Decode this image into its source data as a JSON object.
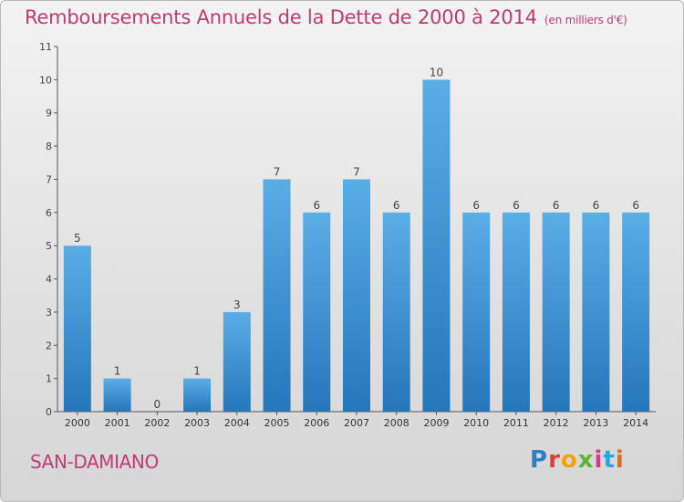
{
  "header": {
    "title": "Remboursements Annuels de la Dette de 2000 à 2014",
    "unit": "(en milliers d'€)"
  },
  "footer": {
    "place": "SAN-DAMIANO",
    "logo_letters": [
      "P",
      "r",
      "o",
      "x",
      "i",
      "t",
      "i"
    ]
  },
  "colors": {
    "title": "#c33a6e",
    "bar_light": "#5aaee6",
    "bar_dark": "#2576bb",
    "axis": "#555555"
  },
  "chart_data": {
    "type": "bar",
    "title": "Remboursements Annuels de la Dette de 2000 à 2014",
    "categories": [
      "2000",
      "2001",
      "2002",
      "2003",
      "2004",
      "2005",
      "2006",
      "2007",
      "2008",
      "2009",
      "2010",
      "2011",
      "2012",
      "2013",
      "2014"
    ],
    "values": [
      5,
      1,
      0,
      1,
      3,
      7,
      6,
      7,
      6,
      10,
      6,
      6,
      6,
      6,
      6
    ],
    "yticks": [
      0,
      1,
      2,
      3,
      4,
      5,
      6,
      7,
      8,
      9,
      10,
      11
    ],
    "ylim": [
      0,
      11
    ],
    "grid": false,
    "legend": "none"
  }
}
